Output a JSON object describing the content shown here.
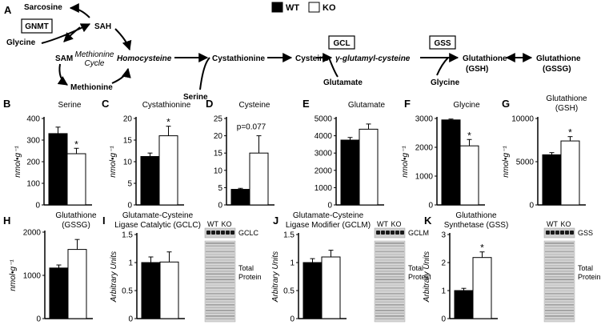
{
  "legend": {
    "wt": "WT",
    "ko": "KO"
  },
  "pathway": {
    "panel": "A",
    "sarcosine": "Sarcosine",
    "gnmt": "GNMT",
    "glycine_left": "Glycine",
    "sah": "SAH",
    "sam": "SAM",
    "cycle1": "Methionine",
    "cycle2": "Cycle",
    "methionine": "Methionine",
    "homocysteine": "Homocysteine",
    "cystathionine": "Cystathionine",
    "serine": "Serine",
    "cysteine": "Cysteine",
    "gcl": "GCL",
    "glutamate": "Glutamate",
    "gamma": "γ-glutamyl-cysteine",
    "gss": "GSS",
    "glycine_right": "Glycine",
    "gsh1": "Glutathione",
    "gsh2": "(GSH)",
    "gssg1": "Glutathione",
    "gssg2": "(GSSG)"
  },
  "colors": {
    "wt": "#000000",
    "ko": "#ffffff"
  },
  "y_unit_label": "nmol•g⁻¹",
  "au_label": "Arbitrary Units",
  "blot": {
    "wt": "WT",
    "ko": "KO",
    "total": [
      "Total",
      "Protein"
    ]
  },
  "chart_data": [
    {
      "panel": "B",
      "type": "bar",
      "title": [
        "Serine"
      ],
      "ylabel": "nmol•g⁻¹",
      "ylim": [
        0,
        400
      ],
      "yticks": [
        0,
        100,
        200,
        300,
        400
      ],
      "categories": [
        "WT",
        "KO"
      ],
      "values": [
        330,
        237
      ],
      "errors": [
        30,
        25
      ],
      "note": "*"
    },
    {
      "panel": "C",
      "type": "bar",
      "title": [
        "Cystathionine"
      ],
      "ylabel": "nmol•g⁻¹",
      "ylim": [
        0,
        20
      ],
      "yticks": [
        0,
        5,
        10,
        15,
        20
      ],
      "categories": [
        "WT",
        "KO"
      ],
      "values": [
        11.2,
        16
      ],
      "errors": [
        0.8,
        2.2
      ],
      "note": "*"
    },
    {
      "panel": "D",
      "type": "bar",
      "title": [
        "Cysteine"
      ],
      "ylabel": "",
      "ylim": [
        0,
        25
      ],
      "yticks": [
        0,
        5,
        10,
        15,
        20,
        25
      ],
      "categories": [
        "WT",
        "KO"
      ],
      "values": [
        4.5,
        15
      ],
      "errors": [
        0.3,
        5
      ],
      "note": "p=0.077"
    },
    {
      "panel": "E",
      "type": "bar",
      "title": [
        "Glutamate"
      ],
      "ylabel": "",
      "ylim": [
        0,
        5000
      ],
      "yticks": [
        0,
        1000,
        2000,
        3000,
        4000,
        5000
      ],
      "categories": [
        "WT",
        "KO"
      ],
      "values": [
        3750,
        4380
      ],
      "errors": [
        150,
        300
      ],
      "note": ""
    },
    {
      "panel": "F",
      "type": "bar",
      "title": [
        "Glycine"
      ],
      "ylabel": "nmol•g⁻¹",
      "ylim": [
        0,
        3000
      ],
      "yticks": [
        0,
        1000,
        2000,
        3000
      ],
      "categories": [
        "WT",
        "KO"
      ],
      "values": [
        2950,
        2050
      ],
      "errors": [
        30,
        220
      ],
      "note": "*"
    },
    {
      "panel": "G",
      "type": "bar",
      "title": [
        "Glutathione",
        "(GSH)"
      ],
      "ylabel": "nmol•g⁻¹",
      "ylim": [
        0,
        10000
      ],
      "yticks": [
        0,
        5000,
        10000
      ],
      "categories": [
        "WT",
        "KO"
      ],
      "values": [
        5800,
        7400
      ],
      "errors": [
        250,
        500
      ],
      "note": "*"
    },
    {
      "panel": "H",
      "type": "bar",
      "title": [
        "Glutathione",
        "(GSSG)"
      ],
      "ylabel": "nmol•g⁻¹",
      "ylim": [
        0,
        2000
      ],
      "yticks": [
        0,
        1000,
        2000
      ],
      "categories": [
        "WT",
        "KO"
      ],
      "values": [
        1170,
        1600
      ],
      "errors": [
        70,
        230
      ],
      "note": ""
    },
    {
      "panel": "I",
      "type": "bar",
      "title": [
        "Glutamate-Cysteine",
        "Ligase Catalytic (GCLC)"
      ],
      "ylabel": "Arbitrary Units",
      "ylim": [
        0,
        1.5
      ],
      "yticks": [
        0,
        0.5,
        1.0,
        1.5
      ],
      "categories": [
        "WT",
        "KO"
      ],
      "values": [
        1.0,
        1.01
      ],
      "errors": [
        0.1,
        0.18
      ],
      "note": "",
      "protein": "GCLC"
    },
    {
      "panel": "J",
      "type": "bar",
      "title": [
        "Glutamate-Cysteine",
        "Ligase Modifier (GCLM)"
      ],
      "ylabel": "Arbitrary Units",
      "ylim": [
        0,
        1.5
      ],
      "yticks": [
        0,
        0.5,
        1.0,
        1.5
      ],
      "categories": [
        "WT",
        "KO"
      ],
      "values": [
        1.0,
        1.1
      ],
      "errors": [
        0.07,
        0.12
      ],
      "note": "",
      "protein": "GCLM"
    },
    {
      "panel": "K",
      "type": "bar",
      "title": [
        "Glutathione",
        "Synthetase (GSS)"
      ],
      "ylabel": "Arbitrary Units",
      "ylim": [
        0,
        3
      ],
      "yticks": [
        0,
        1,
        2,
        3
      ],
      "categories": [
        "WT",
        "KO"
      ],
      "values": [
        1.0,
        2.18
      ],
      "errors": [
        0.08,
        0.2
      ],
      "note": "*",
      "protein": "GSS"
    }
  ]
}
